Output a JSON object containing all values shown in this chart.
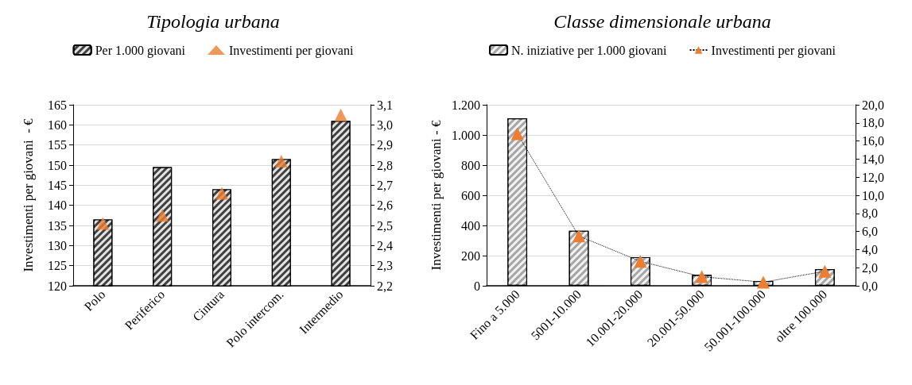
{
  "chart_data": [
    {
      "type": "bar",
      "title": "Tipologia urbana",
      "ylabel": "Investimenti per giovani  - €",
      "categories": [
        "Polo",
        "Periferico",
        "Cintura",
        "Polo intercom.",
        "Intermedio"
      ],
      "series": [
        {
          "name": "Per 1.000 giovani",
          "color": "#404040",
          "values": [
            136.5,
            149.5,
            144,
            151.5,
            161
          ]
        },
        {
          "name": "Investimenti per giovani",
          "type": "scatter",
          "axis": "y2",
          "color": "#ed7d31",
          "marker": "triangle",
          "values": [
            2.51,
            2.55,
            2.66,
            2.82,
            3.05
          ]
        }
      ],
      "ylim": [
        120,
        165
      ],
      "yticks": [
        120,
        125,
        130,
        135,
        140,
        145,
        150,
        155,
        160,
        165
      ],
      "y2lim": [
        2.2,
        3.1
      ],
      "y2ticks": [
        {
          "value": 2.2,
          "label": "2,2"
        },
        {
          "value": 2.3,
          "label": "2,3"
        },
        {
          "value": 2.4,
          "label": "2,4"
        },
        {
          "value": 2.5,
          "label": "2,5"
        },
        {
          "value": 2.6,
          "label": "2,6"
        },
        {
          "value": 2.7,
          "label": "2,7"
        },
        {
          "value": 2.8,
          "label": "2,8"
        },
        {
          "value": 2.9,
          "label": "2,9"
        },
        {
          "value": 3.0,
          "label": "3,0"
        },
        {
          "value": 3.1,
          "label": "3,1"
        }
      ],
      "grid": "y",
      "legend": "top"
    },
    {
      "type": "bar",
      "title": "Classe dimensionale urbana",
      "ylabel": "Investimenti per giovani - €",
      "categories": [
        "Fino a 5.000",
        "5001-10.000",
        "10.001-20.000",
        "20.001-50.000",
        "50.001-100.000",
        "oltre 100.000"
      ],
      "series": [
        {
          "name": "N. iniziative per 1.000 giovani",
          "color": "#a6a6a6",
          "values": [
            1110,
            365,
            190,
            72,
            32,
            110
          ]
        },
        {
          "name": "Investimenti per giovani",
          "type": "line",
          "axis": "y2",
          "color": "#ed7d31",
          "marker": "triangle",
          "line_style": "dotted",
          "values": [
            16.8,
            5.5,
            2.7,
            1.0,
            0.4,
            1.6
          ]
        }
      ],
      "ylim": [
        0,
        1200
      ],
      "yticks": [
        {
          "value": 0,
          "label": "0"
        },
        {
          "value": 200,
          "label": "200"
        },
        {
          "value": 400,
          "label": "400"
        },
        {
          "value": 600,
          "label": "600"
        },
        {
          "value": 800,
          "label": "800"
        },
        {
          "value": 1000,
          "label": "1.000"
        },
        {
          "value": 1200,
          "label": "1.200"
        }
      ],
      "y2lim": [
        0,
        20
      ],
      "y2ticks": [
        {
          "value": 0,
          "label": "0,0"
        },
        {
          "value": 2,
          "label": "2,0"
        },
        {
          "value": 4,
          "label": "4,0"
        },
        {
          "value": 6,
          "label": "6,0"
        },
        {
          "value": 8,
          "label": "8,0"
        },
        {
          "value": 10,
          "label": "10,0"
        },
        {
          "value": 12,
          "label": "12,0"
        },
        {
          "value": 14,
          "label": "14,0"
        },
        {
          "value": 16,
          "label": "16,0"
        },
        {
          "value": 18,
          "label": "18,0"
        },
        {
          "value": 20,
          "label": "20,0"
        }
      ],
      "grid": "y",
      "legend": "top"
    }
  ]
}
